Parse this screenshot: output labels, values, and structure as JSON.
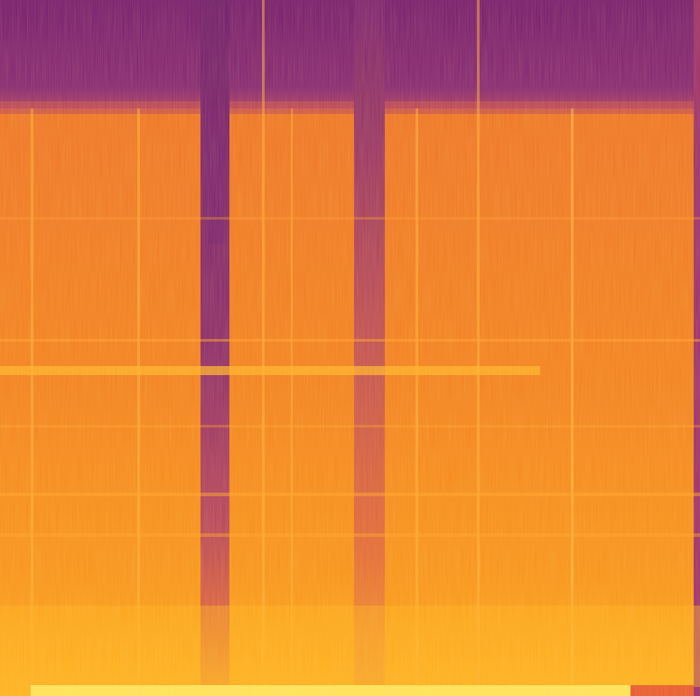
{
  "image": {
    "kind": "spectrogram",
    "colormap": "inferno",
    "colors": {
      "top_band": "#7a1e74",
      "body": "#f07a24",
      "bright": "#ffc02a",
      "peak": "#ffe25a",
      "dark_notch": "#7c2071",
      "right_edge": "#9c2e6b"
    },
    "features": {
      "high_frequency_cutoff_visible": true,
      "dark_vertical_gaps": 2,
      "bright_low_frequency_floor": true
    }
  }
}
